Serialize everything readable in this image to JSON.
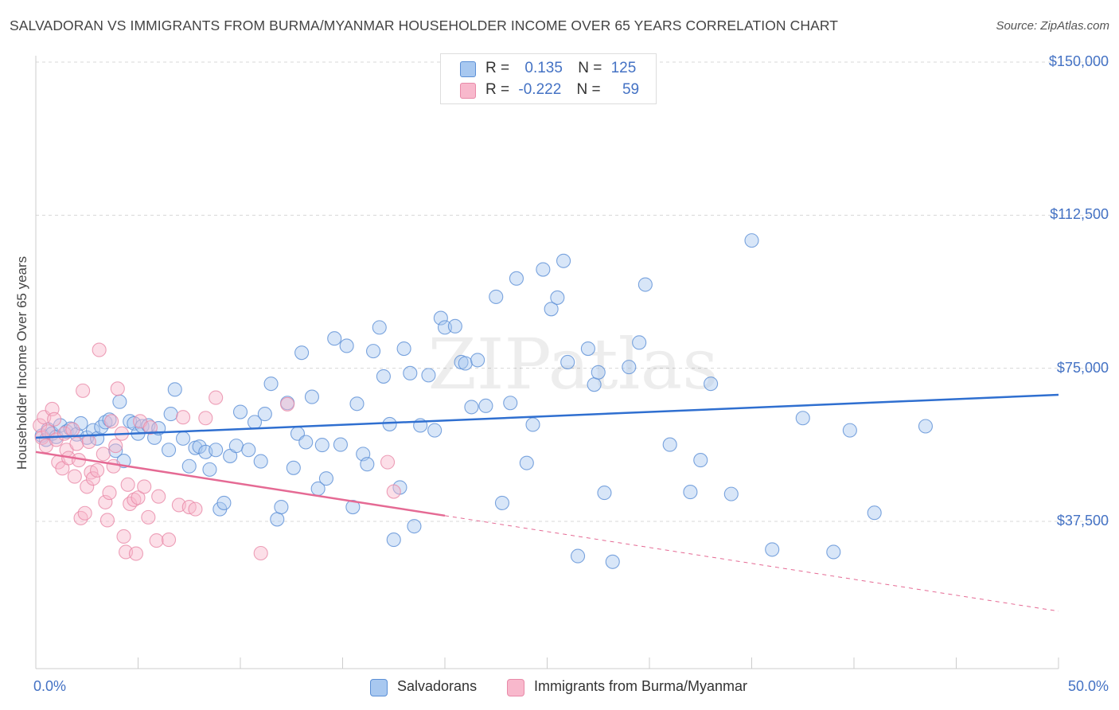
{
  "title": "SALVADORAN VS IMMIGRANTS FROM BURMA/MYANMAR HOUSEHOLDER INCOME OVER 65 YEARS CORRELATION CHART",
  "source": "Source: ZipAtlas.com",
  "watermark": "ZIPatlas",
  "legend": {
    "rows": [
      {
        "r_label": "R =",
        "r_value": "0.135",
        "n_label": "N =",
        "n_value": "125",
        "color": "#a8c8f0"
      },
      {
        "r_label": "R =",
        "r_value": "-0.222",
        "n_label": "N =",
        "n_value": "59",
        "color": "#f8b8cc"
      }
    ]
  },
  "colors": {
    "blue_fill": "#a8c8f0",
    "blue_stroke": "#5b8fd6",
    "blue_line": "#2f6fd0",
    "pink_fill": "#f8b8cc",
    "pink_stroke": "#e889a8",
    "pink_line": "#e56a94",
    "label_blue": "#4472c4"
  },
  "chart_data": {
    "type": "scatter",
    "title": "SALVADORAN VS IMMIGRANTS FROM BURMA/MYANMAR HOUSEHOLDER INCOME OVER 65 YEARS CORRELATION CHART",
    "xlabel": "",
    "ylabel": "Householder Income Over 65 years",
    "xlim": [
      0,
      50
    ],
    "ylim": [
      0,
      160000
    ],
    "x_tick_labels": [
      "0.0%",
      "50.0%"
    ],
    "y_ticks": [
      37500,
      75000,
      112500,
      150000
    ],
    "y_tick_labels": [
      "$37,500",
      "$75,000",
      "$112,500",
      "$150,000"
    ],
    "grid": "horizontal dashed",
    "legend_position": "bottom-center",
    "series": [
      {
        "name": "Salvadorans",
        "r": 0.135,
        "n": 125,
        "trend": {
          "x": [
            0,
            50
          ],
          "y": [
            58000,
            68500
          ],
          "dashed_from": null
        },
        "points": [
          [
            0.3,
            58500
          ],
          [
            0.5,
            57500
          ],
          [
            0.6,
            60000
          ],
          [
            0.8,
            59000
          ],
          [
            1.0,
            58200
          ],
          [
            1.2,
            61000
          ],
          [
            1.5,
            59500
          ],
          [
            1.7,
            60200
          ],
          [
            2.0,
            58800
          ],
          [
            2.2,
            61500
          ],
          [
            2.5,
            58000
          ],
          [
            2.8,
            59800
          ],
          [
            3.0,
            57800
          ],
          [
            3.2,
            60600
          ],
          [
            3.4,
            61800
          ],
          [
            3.6,
            62400
          ],
          [
            3.9,
            54800
          ],
          [
            4.1,
            66800
          ],
          [
            4.3,
            52300
          ],
          [
            4.6,
            62000
          ],
          [
            4.8,
            61500
          ],
          [
            5.0,
            59000
          ],
          [
            5.2,
            60800
          ],
          [
            5.5,
            61000
          ],
          [
            5.8,
            58000
          ],
          [
            6.0,
            60300
          ],
          [
            6.5,
            55000
          ],
          [
            6.6,
            63800
          ],
          [
            6.8,
            69800
          ],
          [
            7.2,
            57800
          ],
          [
            7.5,
            51000
          ],
          [
            7.8,
            55500
          ],
          [
            8.0,
            55800
          ],
          [
            8.3,
            54500
          ],
          [
            8.5,
            50200
          ],
          [
            8.8,
            55000
          ],
          [
            9.0,
            40500
          ],
          [
            9.2,
            42000
          ],
          [
            9.5,
            53500
          ],
          [
            9.8,
            56000
          ],
          [
            10.0,
            64300
          ],
          [
            10.4,
            55000
          ],
          [
            10.7,
            61800
          ],
          [
            11.0,
            52200
          ],
          [
            11.2,
            63800
          ],
          [
            11.5,
            71200
          ],
          [
            11.8,
            38000
          ],
          [
            12.0,
            41000
          ],
          [
            12.3,
            66500
          ],
          [
            12.6,
            50600
          ],
          [
            12.8,
            59000
          ],
          [
            13.0,
            78800
          ],
          [
            13.2,
            56900
          ],
          [
            13.5,
            68000
          ],
          [
            13.8,
            45500
          ],
          [
            14.0,
            56200
          ],
          [
            14.2,
            48000
          ],
          [
            14.6,
            82300
          ],
          [
            14.9,
            56300
          ],
          [
            15.2,
            80500
          ],
          [
            15.5,
            41000
          ],
          [
            15.7,
            66300
          ],
          [
            16.0,
            54000
          ],
          [
            16.2,
            51500
          ],
          [
            16.5,
            79200
          ],
          [
            16.8,
            85000
          ],
          [
            17.0,
            73000
          ],
          [
            17.3,
            61300
          ],
          [
            17.5,
            33000
          ],
          [
            17.8,
            45800
          ],
          [
            18.0,
            79800
          ],
          [
            18.3,
            73800
          ],
          [
            18.5,
            36300
          ],
          [
            18.8,
            61000
          ],
          [
            19.2,
            73300
          ],
          [
            19.5,
            59800
          ],
          [
            19.8,
            87300
          ],
          [
            20.0,
            85000
          ],
          [
            20.5,
            85300
          ],
          [
            20.8,
            76500
          ],
          [
            21.0,
            76200
          ],
          [
            21.3,
            65500
          ],
          [
            21.6,
            77000
          ],
          [
            22.0,
            65800
          ],
          [
            22.5,
            92500
          ],
          [
            22.8,
            42000
          ],
          [
            23.2,
            66500
          ],
          [
            23.5,
            97000
          ],
          [
            24.0,
            51800
          ],
          [
            24.3,
            61200
          ],
          [
            24.8,
            99200
          ],
          [
            25.2,
            89500
          ],
          [
            25.5,
            92300
          ],
          [
            25.8,
            101300
          ],
          [
            26.0,
            76500
          ],
          [
            26.5,
            29000
          ],
          [
            27.0,
            79800
          ],
          [
            27.3,
            71000
          ],
          [
            27.5,
            74000
          ],
          [
            27.8,
            44500
          ],
          [
            28.2,
            27600
          ],
          [
            29.0,
            75300
          ],
          [
            29.5,
            81300
          ],
          [
            29.8,
            95500
          ],
          [
            31.0,
            56300
          ],
          [
            32.0,
            44700
          ],
          [
            32.5,
            52500
          ],
          [
            33.0,
            71200
          ],
          [
            34.0,
            44200
          ],
          [
            35.0,
            106300
          ],
          [
            36.0,
            30600
          ],
          [
            37.5,
            62800
          ],
          [
            39.0,
            30000
          ],
          [
            39.8,
            59800
          ],
          [
            41.0,
            39600
          ],
          [
            43.5,
            60800
          ]
        ]
      },
      {
        "name": "Immigrants from Burma/Myanmar",
        "r": -0.222,
        "n": 59,
        "trend": {
          "x": [
            0,
            50
          ],
          "y": [
            54500,
            15500
          ],
          "dashed_from": 20
        },
        "points": [
          [
            0.2,
            61000
          ],
          [
            0.3,
            58000
          ],
          [
            0.4,
            63000
          ],
          [
            0.5,
            56000
          ],
          [
            0.6,
            59500
          ],
          [
            0.8,
            65000
          ],
          [
            0.9,
            62500
          ],
          [
            1.0,
            57500
          ],
          [
            1.1,
            52000
          ],
          [
            1.3,
            50500
          ],
          [
            1.4,
            59000
          ],
          [
            1.5,
            55000
          ],
          [
            1.6,
            53000
          ],
          [
            1.8,
            60000
          ],
          [
            1.9,
            48500
          ],
          [
            2.0,
            56500
          ],
          [
            2.1,
            52500
          ],
          [
            2.2,
            38300
          ],
          [
            2.3,
            69500
          ],
          [
            2.4,
            39500
          ],
          [
            2.5,
            46000
          ],
          [
            2.6,
            57000
          ],
          [
            2.7,
            49500
          ],
          [
            2.8,
            48000
          ],
          [
            3.0,
            50000
          ],
          [
            3.1,
            79500
          ],
          [
            3.3,
            54000
          ],
          [
            3.4,
            42200
          ],
          [
            3.5,
            37800
          ],
          [
            3.6,
            44500
          ],
          [
            3.7,
            62000
          ],
          [
            3.8,
            51000
          ],
          [
            3.9,
            56000
          ],
          [
            4.0,
            70000
          ],
          [
            4.2,
            59000
          ],
          [
            4.3,
            33800
          ],
          [
            4.4,
            30000
          ],
          [
            4.5,
            46500
          ],
          [
            4.6,
            41800
          ],
          [
            4.8,
            42800
          ],
          [
            4.9,
            29600
          ],
          [
            5.0,
            43300
          ],
          [
            5.1,
            62000
          ],
          [
            5.3,
            46000
          ],
          [
            5.5,
            38500
          ],
          [
            5.6,
            60500
          ],
          [
            5.9,
            32800
          ],
          [
            6.0,
            43600
          ],
          [
            6.5,
            33000
          ],
          [
            7.0,
            41500
          ],
          [
            7.2,
            63000
          ],
          [
            7.5,
            41000
          ],
          [
            7.8,
            40500
          ],
          [
            8.3,
            62800
          ],
          [
            8.8,
            67800
          ],
          [
            11.0,
            29700
          ],
          [
            12.3,
            66200
          ],
          [
            17.2,
            52000
          ],
          [
            17.5,
            44800
          ]
        ]
      }
    ]
  },
  "bottom_legend": {
    "items": [
      {
        "label": "Salvadorans"
      },
      {
        "label": "Immigrants from Burma/Myanmar"
      }
    ]
  }
}
